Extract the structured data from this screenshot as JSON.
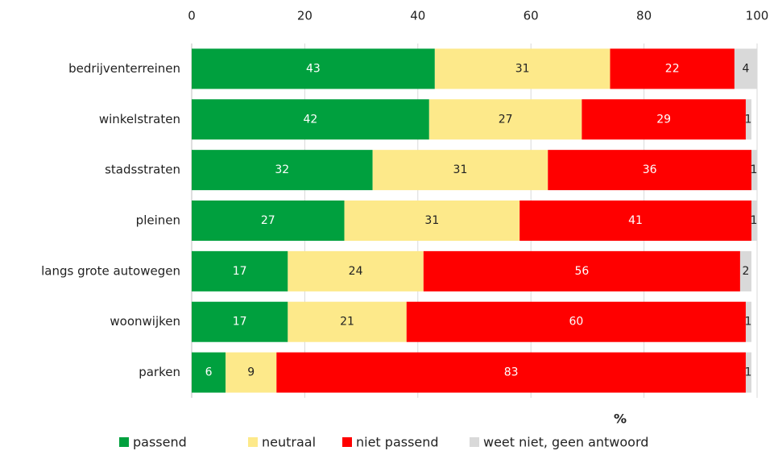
{
  "chart_data": {
    "type": "stacked_barh",
    "categories": [
      "bedrijventerreinen",
      "winkelstraten",
      "stadsstraten",
      "pleinen",
      "langs grote autowegen",
      "woonwijken",
      "parken"
    ],
    "series": [
      {
        "name": "passend",
        "color": "#00a03e",
        "values": [
          43,
          42,
          32,
          27,
          17,
          17,
          6
        ]
      },
      {
        "name": "neutraal",
        "color": "#fde98a",
        "values": [
          31,
          27,
          31,
          31,
          24,
          21,
          9
        ]
      },
      {
        "name": "niet passend",
        "color": "#ff0000",
        "values": [
          22,
          29,
          36,
          41,
          56,
          60,
          83
        ]
      },
      {
        "name": "weet niet, geen antwoord",
        "color": "#d9d9d9",
        "values": [
          4,
          1,
          1,
          1,
          2,
          1,
          1
        ]
      }
    ],
    "xlabel": "%",
    "xlim": [
      0,
      100
    ],
    "xticks": [
      0,
      20,
      40,
      60,
      80,
      100
    ],
    "grid": true
  }
}
